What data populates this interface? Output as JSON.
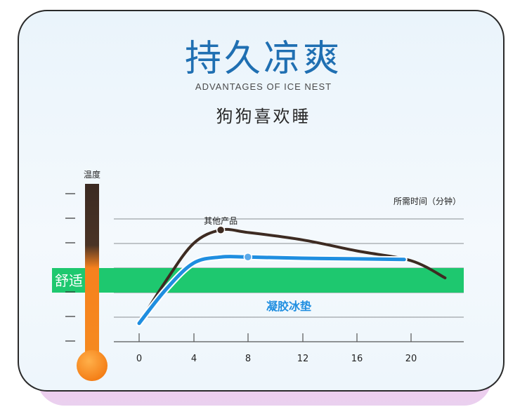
{
  "header": {
    "title": "持久凉爽",
    "subtitle": "ADVANTAGES OF ICE NEST",
    "tagline": "狗狗喜欢睡"
  },
  "thermometer": {
    "label": "温度",
    "comfort_label": "舒适"
  },
  "chart_data": {
    "type": "line",
    "xlabel": "所需时间（分钟）",
    "ylabel": "温度",
    "x_ticks": [
      "0",
      "4",
      "8",
      "12",
      "16",
      "20"
    ],
    "xlim": [
      0,
      23
    ],
    "ylim": [
      0,
      10
    ],
    "grid": true,
    "comfort_band": [
      5.5,
      7.5
    ],
    "series": [
      {
        "name": "其他产品",
        "color": "#3d2b22",
        "x": [
          0,
          2,
          4,
          6,
          8,
          12,
          16,
          20,
          22.5
        ],
        "y": [
          1.5,
          5.0,
          8.0,
          9.1,
          8.9,
          8.3,
          7.4,
          6.6,
          5.2
        ],
        "marker_index": 3
      },
      {
        "name": "凝胶冰垫",
        "color": "#1f8ee0",
        "x": [
          0,
          2,
          4,
          6,
          8,
          12,
          16,
          19.5
        ],
        "y": [
          1.5,
          4.3,
          6.4,
          6.9,
          6.9,
          6.8,
          6.75,
          6.7
        ],
        "marker_index": 4
      }
    ]
  },
  "colors": {
    "title": "#1f6fb2",
    "comfort_band": "#1ec86f",
    "thermo_top": "#3b2a22",
    "thermo_bottom": "#f7811e"
  }
}
